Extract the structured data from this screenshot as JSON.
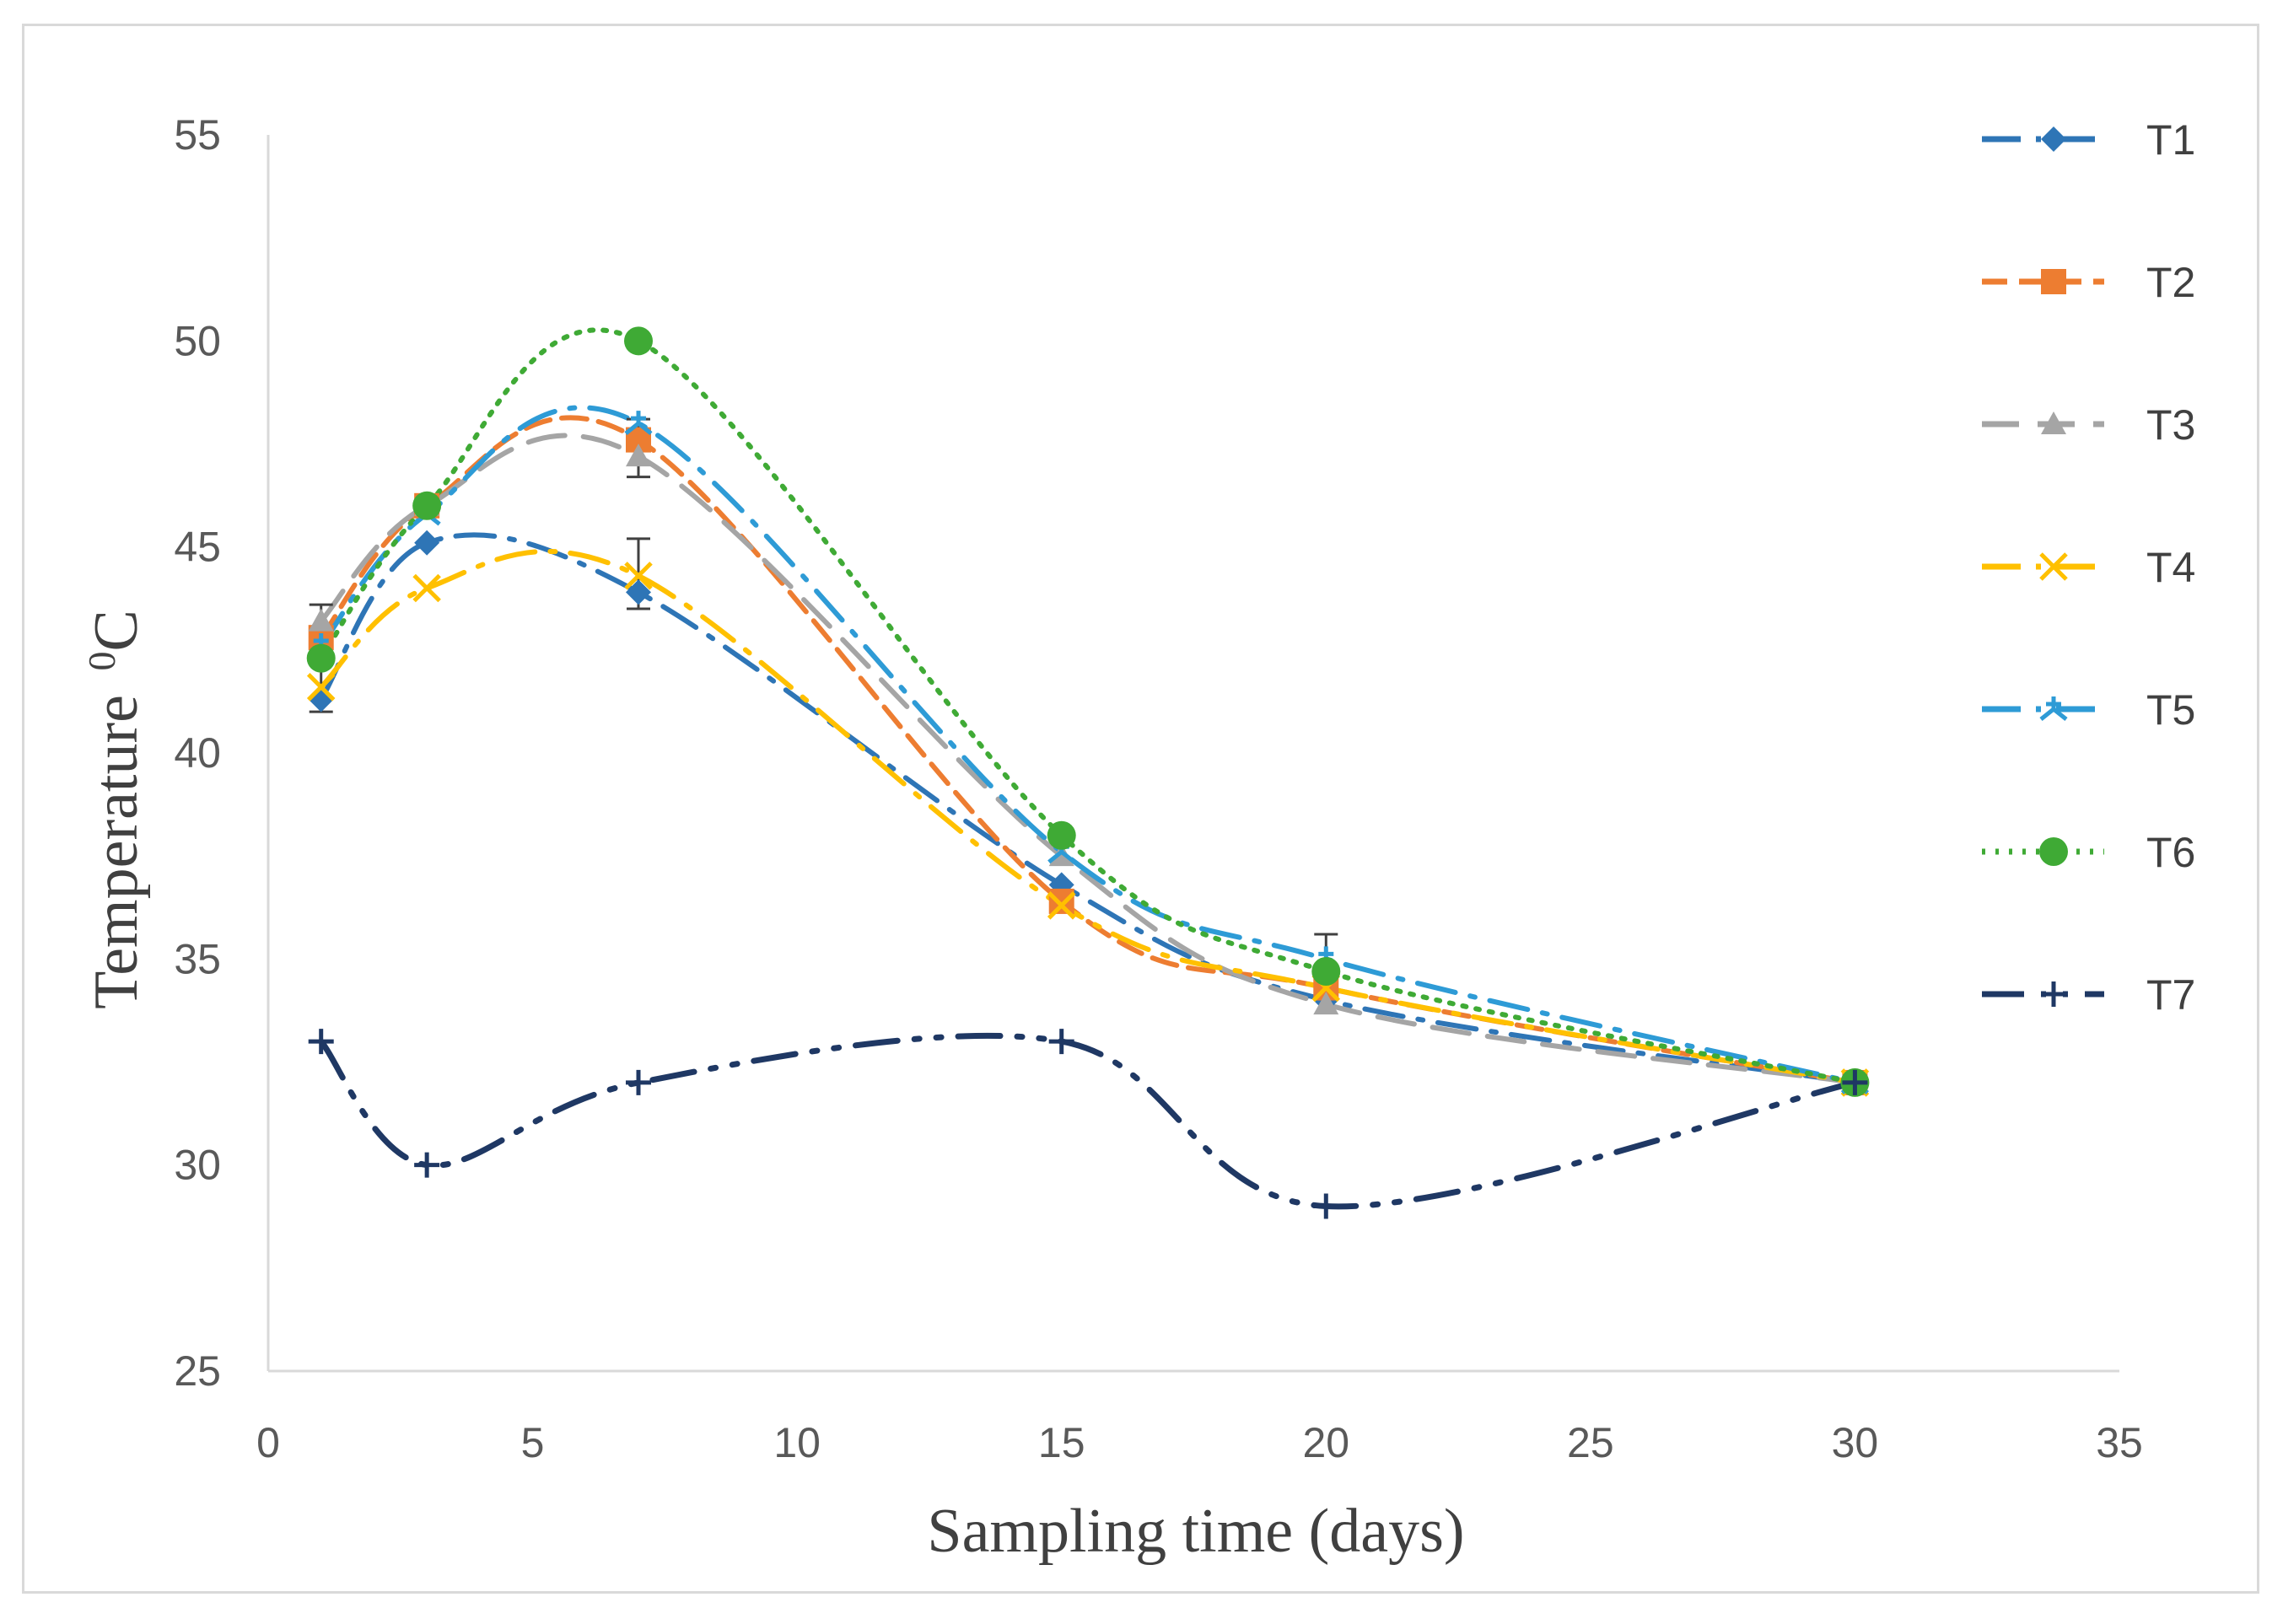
{
  "chart_data": {
    "type": "line",
    "title": "",
    "xlabel": "Sampling time (days)",
    "ylabel": "Temperature",
    "ylabel_sup": "0",
    "ylabel_unit": "C",
    "xlim": [
      0,
      35
    ],
    "ylim": [
      25,
      55
    ],
    "xticks": [
      0,
      5,
      10,
      15,
      20,
      25,
      30,
      35
    ],
    "yticks": [
      25,
      30,
      35,
      40,
      45,
      50,
      55
    ],
    "x": [
      1,
      3,
      7,
      15,
      20,
      30
    ],
    "legend_position": "right",
    "series": [
      {
        "name": "T1",
        "values": [
          41.3,
          45.1,
          43.9,
          36.8,
          34.0,
          32.0
        ],
        "color": "#2e75b6",
        "dash": "long-dash-dot",
        "marker": "diamond"
      },
      {
        "name": "T2",
        "values": [
          42.8,
          46.0,
          47.6,
          36.4,
          34.3,
          32.0
        ],
        "color": "#ed7d31",
        "dash": "dash",
        "marker": "square"
      },
      {
        "name": "T3",
        "values": [
          43.2,
          46.0,
          47.2,
          37.5,
          33.9,
          32.0
        ],
        "color": "#a5a5a5",
        "dash": "long-dash",
        "marker": "triangle"
      },
      {
        "name": "T4",
        "values": [
          41.6,
          44.0,
          44.3,
          36.3,
          34.3,
          32.0
        ],
        "color": "#ffc000",
        "dash": "long-dash-dot",
        "marker": "x"
      },
      {
        "name": "T5",
        "values": [
          42.6,
          45.8,
          48.0,
          37.6,
          35.0,
          32.0
        ],
        "color": "#2e9bd6",
        "dash": "long-dash-dot",
        "marker": "star"
      },
      {
        "name": "T6",
        "values": [
          42.3,
          46.0,
          50.0,
          38.0,
          34.7,
          32.0
        ],
        "color": "#3faa35",
        "dash": "dot",
        "marker": "circle"
      },
      {
        "name": "T7",
        "values": [
          33.0,
          30.0,
          32.0,
          33.0,
          29.0,
          32.0
        ],
        "color": "#1f3864",
        "dash": "long-dash-dot-dot",
        "marker": "plus"
      }
    ],
    "error_bars": [
      {
        "x": 1,
        "low": 41.0,
        "high": 43.6
      },
      {
        "x": 7,
        "low": 46.7,
        "high": 48.1
      },
      {
        "x": 7,
        "low": 43.5,
        "high": 45.2
      },
      {
        "x": 20,
        "low": 34.2,
        "high": 35.6
      }
    ]
  }
}
